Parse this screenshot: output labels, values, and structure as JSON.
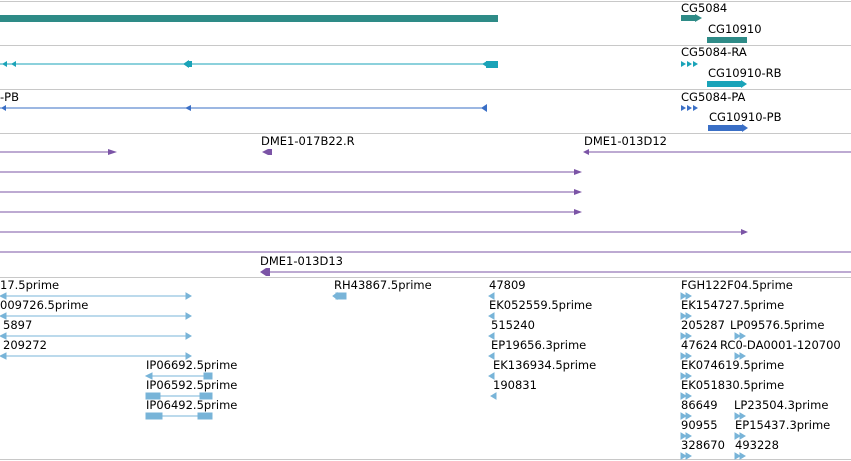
{
  "colors": {
    "gene": "#2e8b87",
    "transcript_ra": "#1aa3b8",
    "transcript_rb": "#3a6fc6",
    "clone": "#7b54a6",
    "est": "#78b4d8",
    "separator": "#c8c8c8"
  },
  "gene_track": {
    "gene_1": "CG5084",
    "gene_2": "CG10910"
  },
  "transcript_ra_track": {
    "label_1": "CG5084-RA",
    "label_2": "CG10910-RB"
  },
  "transcript_rb_track": {
    "label_left": "-PB",
    "label_1": "CG5084-PA",
    "label_2": "CG10910-PB"
  },
  "clone_track": {
    "clone_1": "DME1-017B22.R",
    "clone_2": "DME1-013D12",
    "clone_3": "DME1-013D13"
  },
  "est_track": {
    "labels": [
      "17.5prime",
      "009726.5prime",
      "5897",
      "209272",
      "IP06692.5prime",
      "IP06592.5prime",
      "IP06492.5prime",
      "RH43867.5prime",
      "47809",
      "EK052559.5prime",
      "515240",
      "EP19656.3prime",
      "EK136934.5prime",
      "190831",
      "FGH122F04.5prime",
      "EK154727.5prime",
      "205287",
      "LP09576.5prime",
      "47624",
      "RC0-DA0001-120700",
      "EK074619.5prime",
      "EK051830.5prime",
      "86649",
      "LP23504.3prime",
      "90955",
      "EP15437.3prime",
      "328670",
      "493228"
    ]
  }
}
